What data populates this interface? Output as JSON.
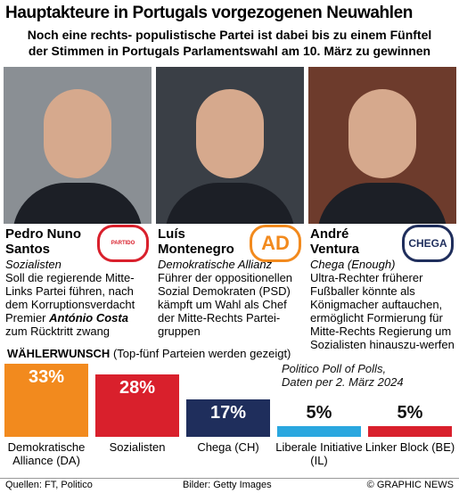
{
  "header": {
    "title": "Hauptakteure in Portugals vorgezogenen Neuwahlen",
    "subtitle_lines": [
      "Noch eine rechts- populistische Partei ist dabei bis zu einem Fünftel",
      "der Stimmen in Portugals Parlamentswahl am 10. März zu gewinnen"
    ]
  },
  "people": [
    {
      "name_lines": [
        "Pedro Nuno",
        "Santos"
      ],
      "party": "Sozialisten",
      "logo": "PARTIDO SOCIALISTA",
      "desc_before": "Soll die regierende Mitte-Links Partei führen, nach dem Korruptionsverdacht Premier ",
      "highlight": "António Costa",
      "desc_after": " zum Rücktritt zwang"
    },
    {
      "name_lines": [
        "Luís",
        "Montenegro"
      ],
      "party": "Demokratische Allianz",
      "logo": "AD",
      "desc_before": "Führer der oppositionellen Sozial Demokraten (PSD) kämpft um Wahl als Chef der Mitte-Rechts Partei-gruppen",
      "highlight": "",
      "desc_after": ""
    },
    {
      "name_lines": [
        "André",
        "Ventura"
      ],
      "party": "Chega (Enough)",
      "logo": "CHEGA",
      "desc_before": "Ultra-Rechter früherer Fußballer könnte als Königmacher auftauchen, ermöglicht Formierung für Mitte-Rechts Regierung um Sozialisten hinauszu-werfen",
      "highlight": "",
      "desc_after": ""
    }
  ],
  "chart_data": {
    "type": "bar",
    "title": "WÄHLERWUNSCH",
    "subtitle": "(Top-fünf Parteien werden gezeigt)",
    "annotation_lines": [
      "Politico Poll of Polls,",
      "Daten per 2. März 2024"
    ],
    "categories": [
      "Demokratische Alliance (DA)",
      "Sozialisten",
      "Chega (CH)",
      "Liberale Initiative (IL)",
      "Linker Block (BE)"
    ],
    "values": [
      33,
      28,
      17,
      5,
      5
    ],
    "value_labels": [
      "33%",
      "28%",
      "17%",
      "5%",
      "5%"
    ],
    "colors": [
      "#f28a1e",
      "#d9202c",
      "#1f2e5c",
      "#2aa7df",
      "#d9202c"
    ],
    "ylim": [
      0,
      33
    ]
  },
  "footer": {
    "sources": "Quellen: FT, Politico",
    "images": "Bilder: Getty Images",
    "credit": "© GRAPHIC NEWS"
  }
}
